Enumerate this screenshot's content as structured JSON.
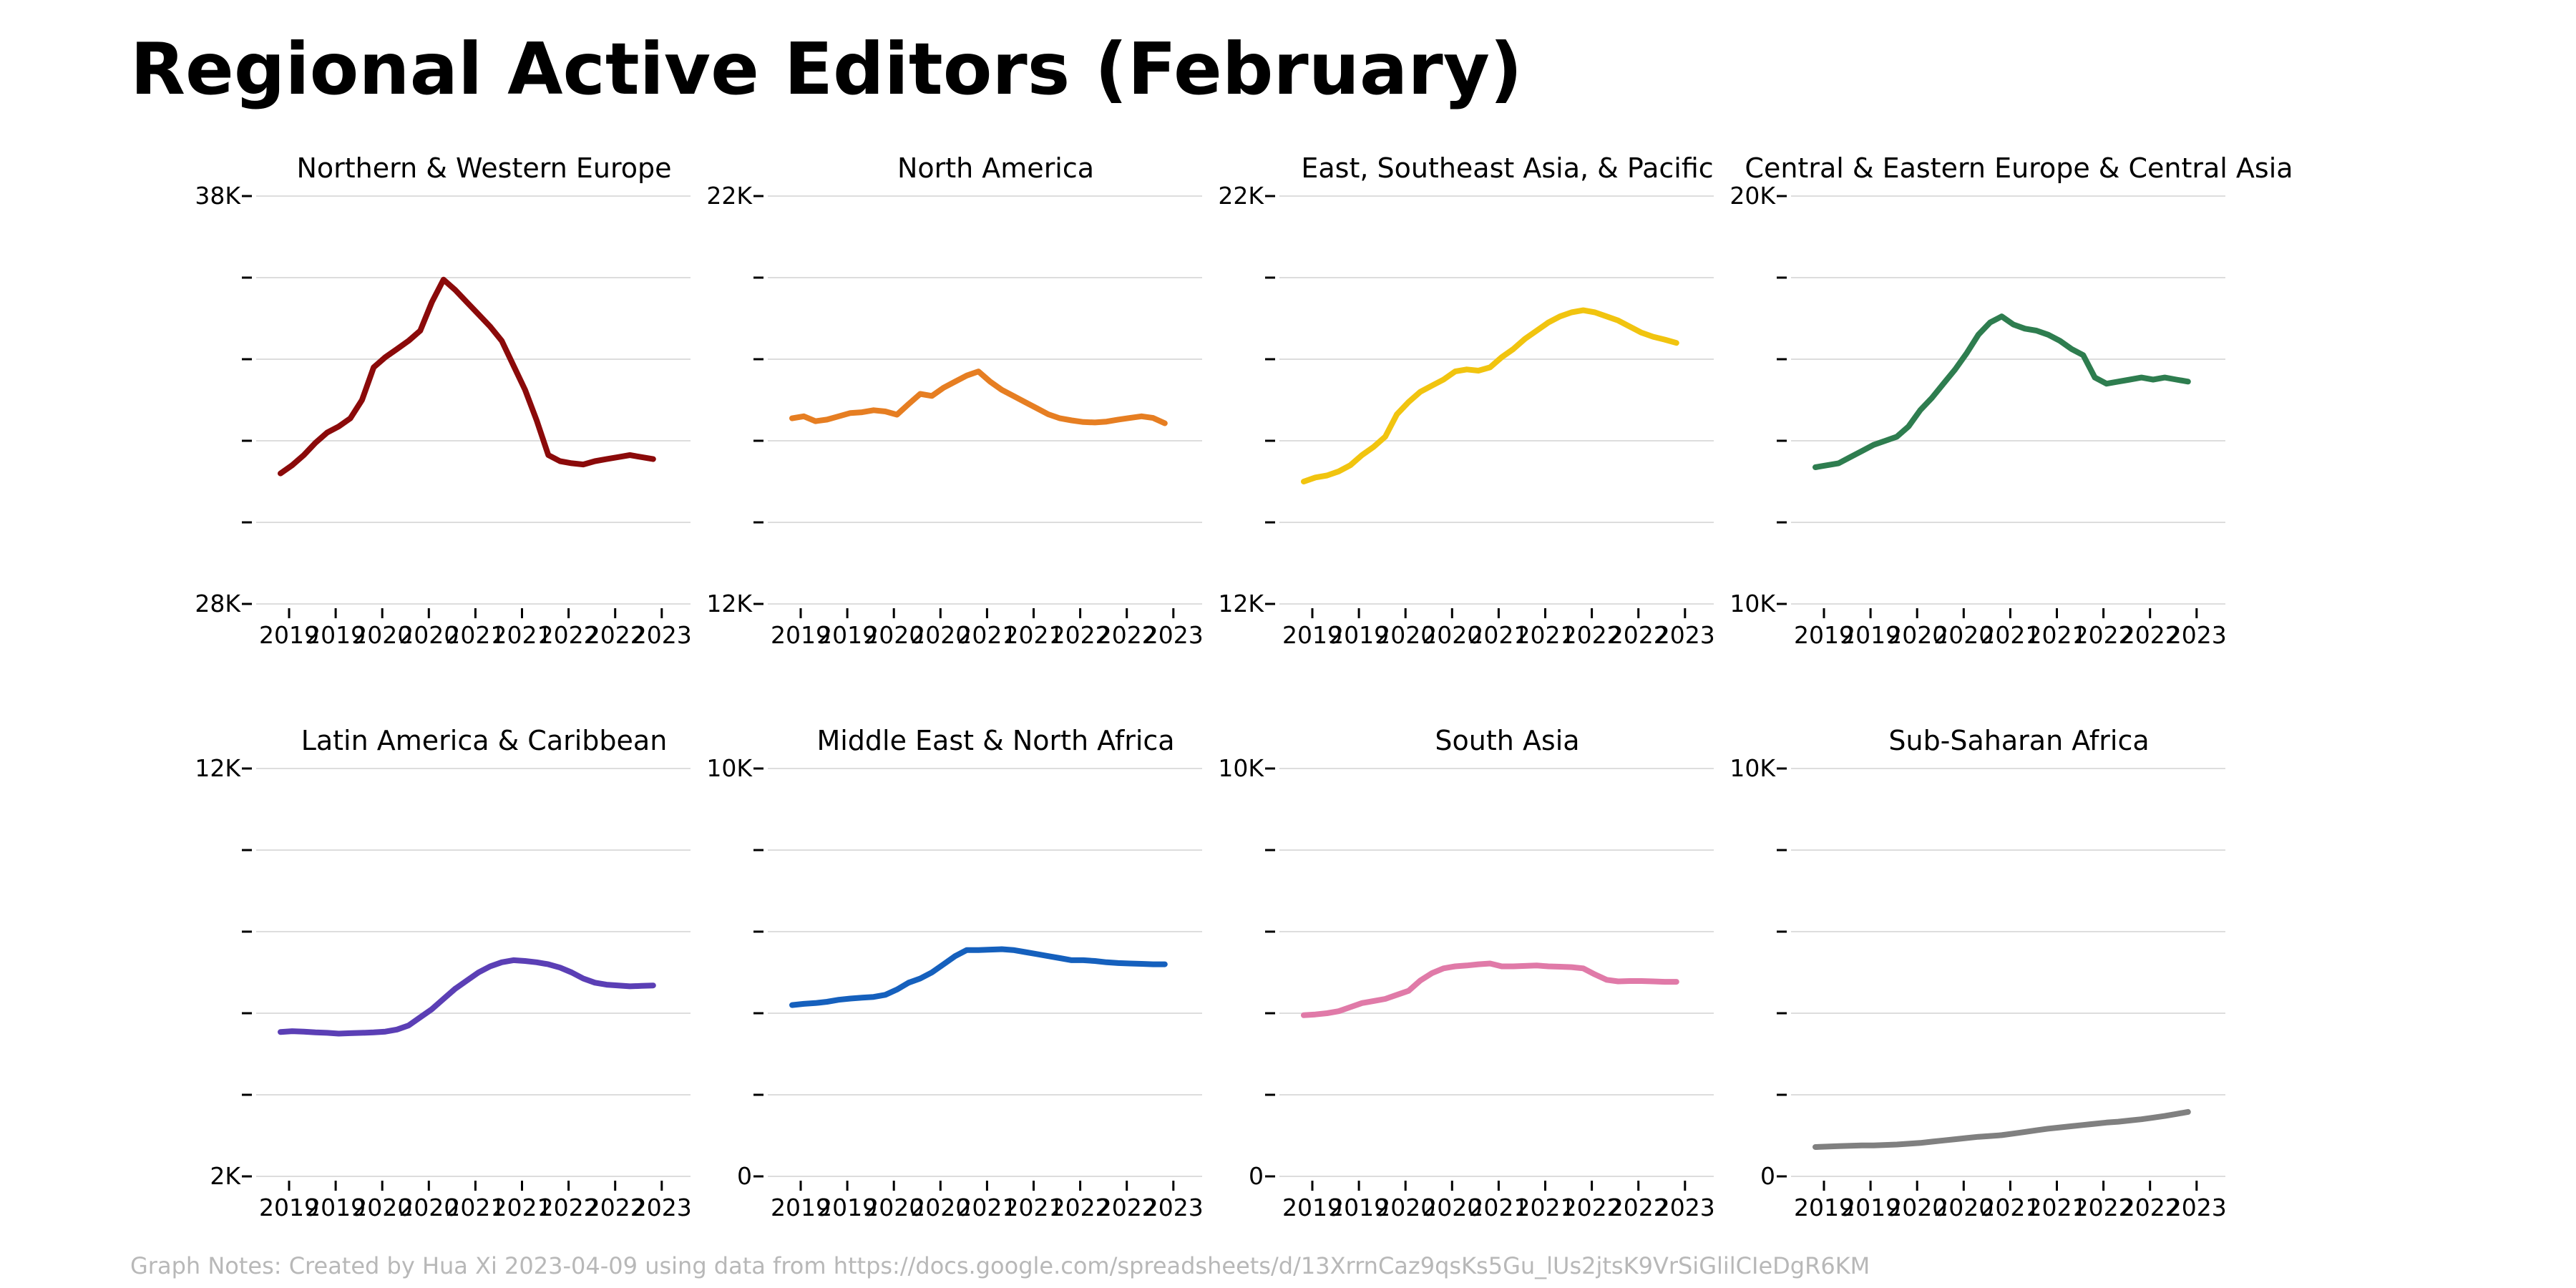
{
  "title": "Regional Active Editors (February)",
  "footnote": "Graph Notes: Created by Hua Xi 2023-04-09 using data from https://docs.google.com/spreadsheets/d/13XrrnCaz9qsKs5Gu_lUs2jtsK9VrSiGlilCIeDgR6KM",
  "chart_data": [
    {
      "type": "line",
      "title": "Northern & Western Europe",
      "color": "#8b0a0a",
      "ylim": [
        28000,
        38000
      ],
      "ytick_labels": {
        "top": "38K",
        "bottom": "28K"
      },
      "xtick_labels": [
        "2019",
        "2019",
        "2020",
        "2020",
        "2021",
        "2021",
        "2022",
        "2022",
        "2023"
      ],
      "x": [
        0,
        0.25,
        0.5,
        0.75,
        1,
        1.25,
        1.5,
        1.75,
        2,
        2.25,
        2.5,
        2.75,
        3,
        3.25,
        3.5,
        3.75,
        4,
        4.25,
        4.5,
        4.75,
        5,
        5.25,
        5.5,
        5.75,
        6,
        6.25,
        6.5,
        6.75,
        7,
        7.25,
        7.5,
        7.75,
        8
      ],
      "values": [
        31200,
        31400,
        31650,
        31950,
        32200,
        32350,
        32550,
        33000,
        33800,
        34050,
        34250,
        34450,
        34700,
        35400,
        35950,
        35700,
        35400,
        35100,
        34800,
        34450,
        33850,
        33250,
        32500,
        31650,
        31500,
        31450,
        31420,
        31500,
        31550,
        31600,
        31650,
        31600,
        31550
      ]
    },
    {
      "type": "line",
      "title": "North America",
      "color": "#e67e22",
      "ylim": [
        12000,
        22000
      ],
      "ytick_labels": {
        "top": "22K",
        "bottom": "12K"
      },
      "xtick_labels": [
        "2019",
        "2019",
        "2020",
        "2020",
        "2021",
        "2021",
        "2022",
        "2022",
        "2023"
      ],
      "x": [
        0,
        0.25,
        0.5,
        0.75,
        1,
        1.25,
        1.5,
        1.75,
        2,
        2.25,
        2.5,
        2.75,
        3,
        3.25,
        3.5,
        3.75,
        4,
        4.25,
        4.5,
        4.75,
        5,
        5.25,
        5.5,
        5.75,
        6,
        6.25,
        6.5,
        6.75,
        7,
        7.25,
        7.5,
        7.75,
        8
      ],
      "values": [
        16550,
        16600,
        16480,
        16520,
        16600,
        16680,
        16700,
        16750,
        16720,
        16640,
        16900,
        17150,
        17100,
        17300,
        17450,
        17600,
        17700,
        17450,
        17250,
        17100,
        16950,
        16800,
        16650,
        16550,
        16500,
        16460,
        16450,
        16470,
        16520,
        16560,
        16600,
        16560,
        16430
      ]
    },
    {
      "type": "line",
      "title": "East, Southeast Asia, & Pacific",
      "color": "#f1c40f",
      "ylim": [
        12000,
        22000
      ],
      "ytick_labels": {
        "top": "22K",
        "bottom": "12K"
      },
      "xtick_labels": [
        "2019",
        "2019",
        "2020",
        "2020",
        "2021",
        "2021",
        "2022",
        "2022",
        "2023"
      ],
      "x": [
        0,
        0.25,
        0.5,
        0.75,
        1,
        1.25,
        1.5,
        1.75,
        2,
        2.25,
        2.5,
        2.75,
        3,
        3.25,
        3.5,
        3.75,
        4,
        4.25,
        4.5,
        4.75,
        5,
        5.25,
        5.5,
        5.75,
        6,
        6.25,
        6.5,
        6.75,
        7,
        7.25,
        7.5,
        7.75,
        8
      ],
      "values": [
        15000,
        15100,
        15150,
        15250,
        15400,
        15650,
        15850,
        16100,
        16650,
        16950,
        17200,
        17350,
        17500,
        17700,
        17750,
        17720,
        17800,
        18050,
        18250,
        18500,
        18700,
        18900,
        19050,
        19150,
        19200,
        19150,
        19050,
        18950,
        18800,
        18650,
        18550,
        18480,
        18400
      ]
    },
    {
      "type": "line",
      "title": "Central & Eastern Europe & Central Asia",
      "color": "#2e7d4f",
      "ylim": [
        10000,
        20000
      ],
      "ytick_labels": {
        "top": "20K",
        "bottom": "10K"
      },
      "xtick_labels": [
        "2019",
        "2019",
        "2020",
        "2020",
        "2021",
        "2021",
        "2022",
        "2022",
        "2023"
      ],
      "x": [
        0,
        0.25,
        0.5,
        0.75,
        1,
        1.25,
        1.5,
        1.75,
        2,
        2.25,
        2.5,
        2.75,
        3,
        3.25,
        3.5,
        3.75,
        4,
        4.25,
        4.5,
        4.75,
        5,
        5.25,
        5.5,
        5.75,
        6,
        6.25,
        6.5,
        6.75,
        7,
        7.25,
        7.5,
        7.75,
        8
      ],
      "values": [
        13350,
        13400,
        13450,
        13600,
        13750,
        13900,
        14000,
        14100,
        14350,
        14750,
        15050,
        15400,
        15750,
        16150,
        16600,
        16900,
        17050,
        16850,
        16750,
        16700,
        16600,
        16450,
        16250,
        16100,
        15550,
        15400,
        15450,
        15500,
        15550,
        15500,
        15550,
        15500,
        15450
      ]
    },
    {
      "type": "line",
      "title": "Latin America & Caribbean",
      "color": "#5b3fb5",
      "ylim": [
        2000,
        12000
      ],
      "ytick_labels": {
        "top": "12K",
        "bottom": "2K"
      },
      "xtick_labels": [
        "2019",
        "2019",
        "2020",
        "2020",
        "2021",
        "2021",
        "2022",
        "2022",
        "2023"
      ],
      "x": [
        0,
        0.25,
        0.5,
        0.75,
        1,
        1.25,
        1.5,
        1.75,
        2,
        2.25,
        2.5,
        2.75,
        3,
        3.25,
        3.5,
        3.75,
        4,
        4.25,
        4.5,
        4.75,
        5,
        5.25,
        5.5,
        5.75,
        6,
        6.25,
        6.5,
        6.75,
        7,
        7.25,
        7.5,
        7.75,
        8
      ],
      "values": [
        5540,
        5560,
        5550,
        5530,
        5520,
        5500,
        5510,
        5520,
        5530,
        5550,
        5600,
        5700,
        5900,
        6100,
        6350,
        6600,
        6800,
        7000,
        7150,
        7250,
        7300,
        7280,
        7250,
        7200,
        7120,
        7000,
        6850,
        6750,
        6700,
        6680,
        6660,
        6670,
        6680
      ]
    },
    {
      "type": "line",
      "title": "Middle East & North Africa",
      "color": "#1560bd",
      "ylim": [
        0,
        10000
      ],
      "ytick_labels": {
        "top": "10K",
        "bottom": "0"
      },
      "xtick_labels": [
        "2019",
        "2019",
        "2020",
        "2020",
        "2021",
        "2021",
        "2022",
        "2022",
        "2023"
      ],
      "x": [
        0,
        0.25,
        0.5,
        0.75,
        1,
        1.25,
        1.5,
        1.75,
        2,
        2.25,
        2.5,
        2.75,
        3,
        3.25,
        3.5,
        3.75,
        4,
        4.25,
        4.5,
        4.75,
        5,
        5.25,
        5.5,
        5.75,
        6,
        6.25,
        6.5,
        6.75,
        7,
        7.25,
        7.5,
        7.75,
        8
      ],
      "values": [
        4200,
        4230,
        4250,
        4280,
        4330,
        4360,
        4380,
        4400,
        4450,
        4580,
        4750,
        4850,
        5000,
        5200,
        5400,
        5550,
        5550,
        5560,
        5570,
        5550,
        5500,
        5450,
        5400,
        5350,
        5300,
        5300,
        5280,
        5250,
        5230,
        5220,
        5210,
        5200,
        5200
      ]
    },
    {
      "type": "line",
      "title": "South Asia",
      "color": "#e07aa8",
      "ylim": [
        0,
        10000
      ],
      "ytick_labels": {
        "top": "10K",
        "bottom": "0"
      },
      "xtick_labels": [
        "2019",
        "2019",
        "2020",
        "2020",
        "2021",
        "2021",
        "2022",
        "2022",
        "2023"
      ],
      "x": [
        0,
        0.25,
        0.5,
        0.75,
        1,
        1.25,
        1.5,
        1.75,
        2,
        2.25,
        2.5,
        2.75,
        3,
        3.25,
        3.5,
        3.75,
        4,
        4.25,
        4.5,
        4.75,
        5,
        5.25,
        5.5,
        5.75,
        6,
        6.25,
        6.5,
        6.75,
        7,
        7.25,
        7.5,
        7.75,
        8
      ],
      "values": [
        3950,
        3970,
        4000,
        4050,
        4150,
        4250,
        4300,
        4350,
        4450,
        4550,
        4800,
        4980,
        5100,
        5150,
        5170,
        5200,
        5220,
        5150,
        5150,
        5160,
        5170,
        5150,
        5140,
        5130,
        5100,
        4950,
        4820,
        4780,
        4790,
        4790,
        4780,
        4770,
        4770
      ]
    },
    {
      "type": "line",
      "title": "Sub-Saharan Africa",
      "color": "#808080",
      "ylim": [
        0,
        10000
      ],
      "ytick_labels": {
        "top": "10K",
        "bottom": "0"
      },
      "xtick_labels": [
        "2019",
        "2019",
        "2020",
        "2020",
        "2021",
        "2021",
        "2022",
        "2022",
        "2023"
      ],
      "x": [
        0,
        0.25,
        0.5,
        0.75,
        1,
        1.25,
        1.5,
        1.75,
        2,
        2.25,
        2.5,
        2.75,
        3,
        3.25,
        3.5,
        3.75,
        4,
        4.25,
        4.5,
        4.75,
        5,
        5.25,
        5.5,
        5.75,
        6,
        6.25,
        6.5,
        6.75,
        7,
        7.25,
        7.5,
        7.75,
        8
      ],
      "values": [
        720,
        730,
        740,
        750,
        760,
        760,
        770,
        780,
        800,
        820,
        850,
        880,
        910,
        940,
        970,
        990,
        1010,
        1050,
        1090,
        1130,
        1170,
        1200,
        1230,
        1260,
        1290,
        1320,
        1340,
        1370,
        1400,
        1440,
        1480,
        1530,
        1580
      ]
    }
  ]
}
